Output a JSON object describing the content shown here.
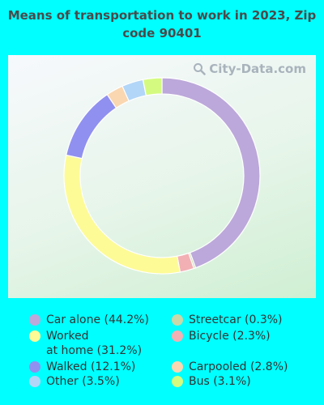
{
  "chart_data": {
    "type": "pie",
    "title": "Means of transportation to work in 2023, Zip code 90401",
    "donut": true,
    "categories": [
      "Car alone",
      "Streetcar",
      "Bicycle",
      "Worked at home",
      "Walked",
      "Carpooled",
      "Other",
      "Bus"
    ],
    "values": [
      44.2,
      0.3,
      2.3,
      31.2,
      12.1,
      2.8,
      3.5,
      3.1
    ],
    "colors": [
      "#bca8da",
      "#c8d8a8",
      "#f2b0b4",
      "#fdfb96",
      "#9090f0",
      "#fad7b0",
      "#b2d6f7",
      "#d4fb80"
    ],
    "legend_labels": [
      "Car alone (44.2%)",
      "Worked\nat home (31.2%)",
      "Walked (12.1%)",
      "Other (3.5%)",
      "Streetcar (0.3%)",
      "Bicycle (2.3%)",
      "Carpooled (2.8%)",
      "Bus (3.1%)"
    ],
    "legend_colors": [
      "#bca8da",
      "#fdfb96",
      "#9090f0",
      "#b2d6f7",
      "#c8d8a8",
      "#f2b0b4",
      "#fad7b0",
      "#d4fb80"
    ],
    "legend_placement": "bottom"
  },
  "watermark": {
    "text": "City-Data.com",
    "icon": "magnifier-icon"
  }
}
